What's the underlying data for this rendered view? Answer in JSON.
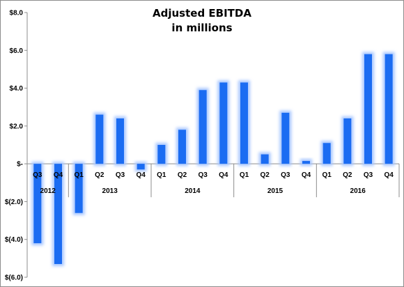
{
  "chart_data": {
    "type": "bar",
    "title": "Adjusted EBITDA",
    "subtitle": "in millions",
    "xlabel": "",
    "ylabel": "",
    "ylim": [
      -6,
      8
    ],
    "yticks": [
      {
        "value": 8,
        "label": "$8.0"
      },
      {
        "value": 6,
        "label": "$6.0"
      },
      {
        "value": 4,
        "label": "$4.0"
      },
      {
        "value": 2,
        "label": "$2.0"
      },
      {
        "value": 0,
        "label": "$-"
      },
      {
        "value": -2,
        "label": "$(2.0)"
      },
      {
        "value": -4,
        "label": "$(4.0)"
      },
      {
        "value": -6,
        "label": "$(6.0)"
      }
    ],
    "categories": [
      "Q3",
      "Q4",
      "Q1",
      "Q2",
      "Q3",
      "Q4",
      "Q1",
      "Q2",
      "Q3",
      "Q4",
      "Q1",
      "Q2",
      "Q3",
      "Q4",
      "Q1",
      "Q2",
      "Q3",
      "Q4"
    ],
    "values": [
      -4.2,
      -5.3,
      -2.6,
      2.6,
      2.4,
      -0.3,
      1.0,
      1.8,
      3.9,
      4.3,
      4.3,
      0.5,
      2.7,
      0.15,
      1.1,
      2.4,
      5.8,
      5.8
    ],
    "groups": [
      {
        "label": "2012",
        "count": 2
      },
      {
        "label": "2013",
        "count": 4
      },
      {
        "label": "2014",
        "count": 4
      },
      {
        "label": "2015",
        "count": 4
      },
      {
        "label": "2016",
        "count": 4
      }
    ],
    "colors": {
      "bar": "#1b6cf2",
      "glow": "#a9c7ff",
      "axis": "#8c8c8c"
    },
    "grid": false,
    "legend": "none"
  }
}
